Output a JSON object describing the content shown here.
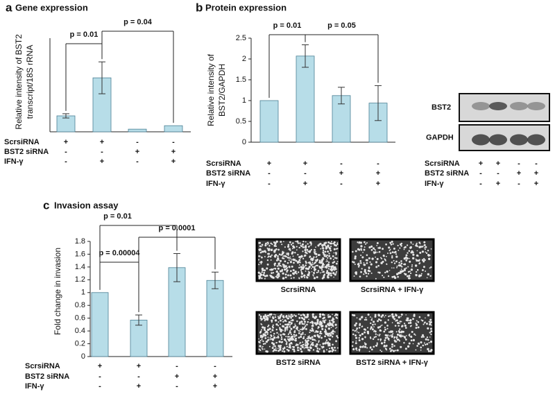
{
  "chart_data": [
    {
      "type": "bar",
      "panel": "a",
      "title": "Gene expression",
      "ylabel": [
        "Relative intensity of BST2",
        "transcript/18S rRNA"
      ],
      "values": [
        6,
        20.3,
        1,
        2.3
      ],
      "errors": [
        0.8,
        6,
        null,
        null
      ],
      "color": "#b7dde8",
      "ylim": [
        0,
        30
      ],
      "conditions": [
        {
          "name": "ScrsiRNA",
          "signs": [
            "+",
            "+",
            "-",
            "-"
          ]
        },
        {
          "name": "BST2 siRNA",
          "signs": [
            "-",
            "-",
            "+",
            "+"
          ]
        },
        {
          "name": "IFN-γ",
          "signs": [
            "-",
            "+",
            "-",
            "+"
          ]
        }
      ],
      "annotations": [
        {
          "text": "p = 0.01",
          "between": [
            0,
            1
          ]
        },
        {
          "text": "p = 0.04",
          "between": [
            1,
            3
          ]
        }
      ]
    },
    {
      "type": "bar",
      "panel": "b",
      "title": "Protein expression",
      "ylabel": [
        "Relative intensity of",
        "BST2/GAPDH"
      ],
      "values": [
        1,
        2.07,
        1.12,
        0.94
      ],
      "errors": [
        null,
        0.27,
        0.2,
        0.42
      ],
      "color": "#b7dde8",
      "ylim": [
        0,
        2.5
      ],
      "yticks": [
        0,
        0.5,
        1,
        1.5,
        2,
        2.5
      ],
      "conditions": [
        {
          "name": "ScrsiRNA",
          "signs": [
            "+",
            "+",
            "-",
            "-"
          ]
        },
        {
          "name": "BST2 siRNA",
          "signs": [
            "-",
            "-",
            "+",
            "+"
          ]
        },
        {
          "name": "IFN-γ",
          "signs": [
            "-",
            "+",
            "-",
            "+"
          ]
        }
      ],
      "annotations": [
        {
          "text": "p = 0.01",
          "between": [
            0,
            1
          ]
        },
        {
          "text": "p = 0.05",
          "between": [
            1,
            3
          ]
        }
      ]
    },
    {
      "type": "bar",
      "panel": "c",
      "title": "Invasion assay",
      "ylabel": [
        "Fold change in invasion"
      ],
      "values": [
        1,
        0.57,
        1.39,
        1.19
      ],
      "errors": [
        null,
        0.08,
        0.22,
        0.13
      ],
      "color": "#b7dde8",
      "ylim": [
        0,
        1.8
      ],
      "yticks": [
        0,
        0.2,
        0.4,
        0.6,
        0.8,
        1,
        1.2,
        1.4,
        1.6,
        1.8
      ],
      "conditions": [
        {
          "name": "ScrsiRNA",
          "signs": [
            "+",
            "+",
            "-",
            "-"
          ]
        },
        {
          "name": "BST2 siRNA",
          "signs": [
            "-",
            "-",
            "+",
            "+"
          ]
        },
        {
          "name": "IFN-γ",
          "signs": [
            "-",
            "+",
            "-",
            "+"
          ]
        }
      ],
      "annotations": [
        {
          "text": "p = 0.00004",
          "between": [
            0,
            1
          ]
        },
        {
          "text": "p = 0.01",
          "between": [
            0,
            2
          ]
        },
        {
          "text": "p = 0.0001",
          "between": [
            1,
            3
          ]
        }
      ]
    }
  ],
  "blot": {
    "bands": [
      "BST2",
      "GAPDH"
    ],
    "conditions": [
      {
        "name": "ScrsiRNA",
        "signs": [
          "+",
          "+",
          "-",
          "-"
        ]
      },
      {
        "name": "BST2 siRNA",
        "signs": [
          "-",
          "-",
          "+",
          "+"
        ]
      },
      {
        "name": "IFN-γ",
        "signs": [
          "-",
          "+",
          "-",
          "+"
        ]
      }
    ]
  },
  "images": [
    "ScrsiRNA",
    "ScrsiRNA  + IFN-γ",
    "BST2 siRNA",
    "BST2 siRNA  + IFN-γ"
  ]
}
